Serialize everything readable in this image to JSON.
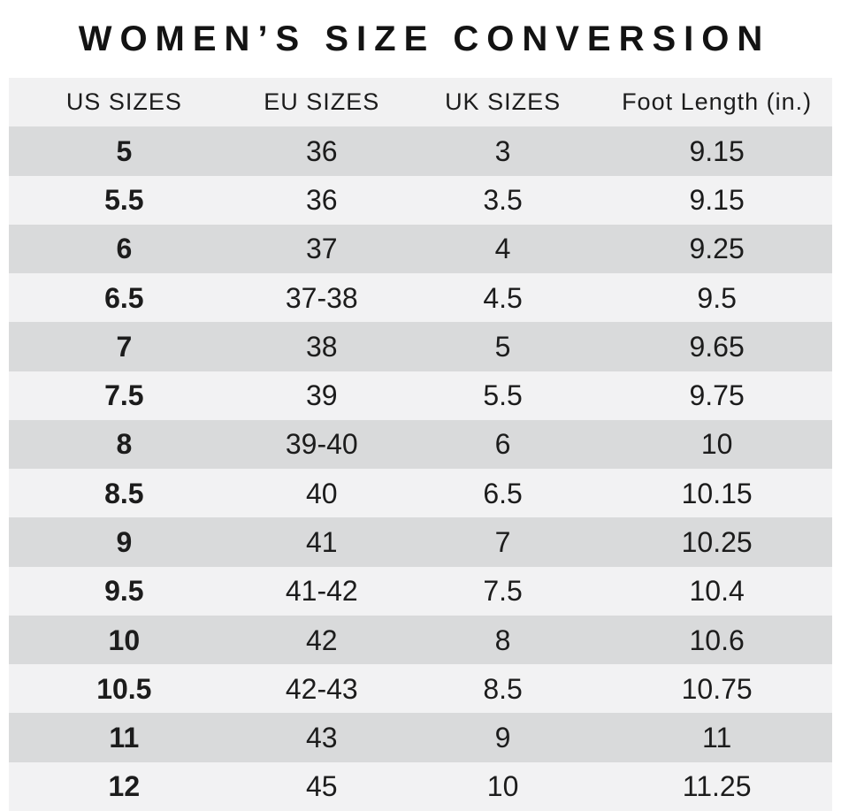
{
  "chart_data": {
    "type": "table",
    "title": "WOMEN’S SIZE CONVERSION",
    "columns": [
      "US SIZES",
      "EU SIZES",
      "UK SIZES",
      "Foot Length (in.)"
    ],
    "rows": [
      [
        "5",
        "36",
        "3",
        "9.15"
      ],
      [
        "5.5",
        "36",
        "3.5",
        "9.15"
      ],
      [
        "6",
        "37",
        "4",
        "9.25"
      ],
      [
        "6.5",
        "37-38",
        "4.5",
        "9.5"
      ],
      [
        "7",
        "38",
        "5",
        "9.65"
      ],
      [
        "7.5",
        "39",
        "5.5",
        "9.75"
      ],
      [
        "8",
        "39-40",
        "6",
        "10"
      ],
      [
        "8.5",
        "40",
        "6.5",
        "10.15"
      ],
      [
        "9",
        "41",
        "7",
        "10.25"
      ],
      [
        "9.5",
        "41-42",
        "7.5",
        "10.4"
      ],
      [
        "10",
        "42",
        "8",
        "10.6"
      ],
      [
        "10.5",
        "42-43",
        "8.5",
        "10.75"
      ],
      [
        "11",
        "43",
        "9",
        "11"
      ],
      [
        "12",
        "45",
        "10",
        "11.25"
      ]
    ],
    "layout": {
      "striped": true,
      "first_data_row_shade": "dark",
      "first_column_bold": true,
      "legend_position": "none",
      "grid": false
    }
  },
  "colors": {
    "row_dark": "#d9dadb",
    "row_light": "#f2f2f3",
    "header_bg": "#f1f1f2",
    "text": "#1c1c1c",
    "title": "#131313",
    "background": "#ffffff"
  }
}
